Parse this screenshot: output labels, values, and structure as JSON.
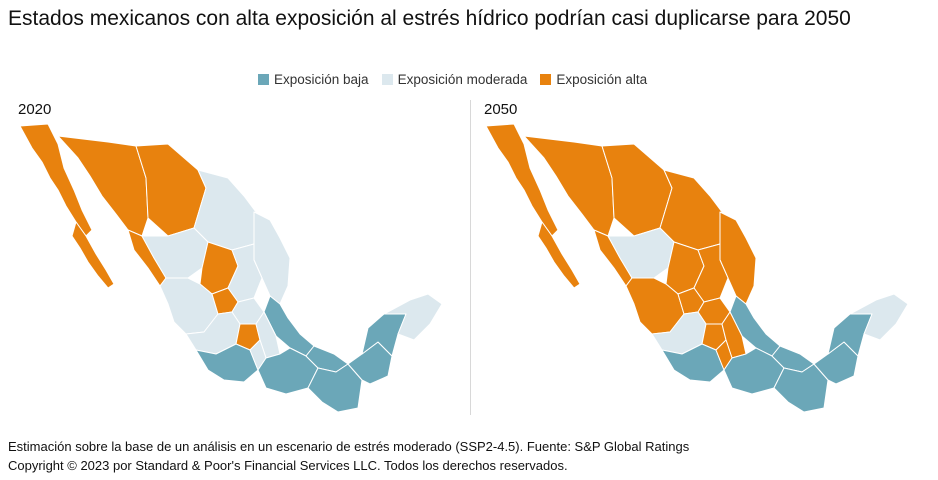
{
  "title": "Estados mexicanos con alta exposición al estrés hídrico podrían casi duplicarse para 2050",
  "legend": [
    {
      "label": "Exposición baja",
      "color": "#6ba7b8"
    },
    {
      "label": "Exposición moderada",
      "color": "#dce8ee"
    },
    {
      "label": "Exposición alta",
      "color": "#e8820e"
    }
  ],
  "panels": [
    {
      "label": "2020"
    },
    {
      "label": "2050"
    }
  ],
  "footer": {
    "line1": "Estimación sobre la base de un análisis en un escenario de estrés moderado (SSP2-4.5). Fuente: S&P Global Ratings",
    "line2": "Copyright © 2023 por Standard & Poor's Financial Services LLC. Todos los derechos reservados."
  },
  "colors": {
    "baja": "#6ba7b8",
    "moderada": "#dce8ee",
    "alta": "#e8820e",
    "border": "#ffffff"
  }
}
